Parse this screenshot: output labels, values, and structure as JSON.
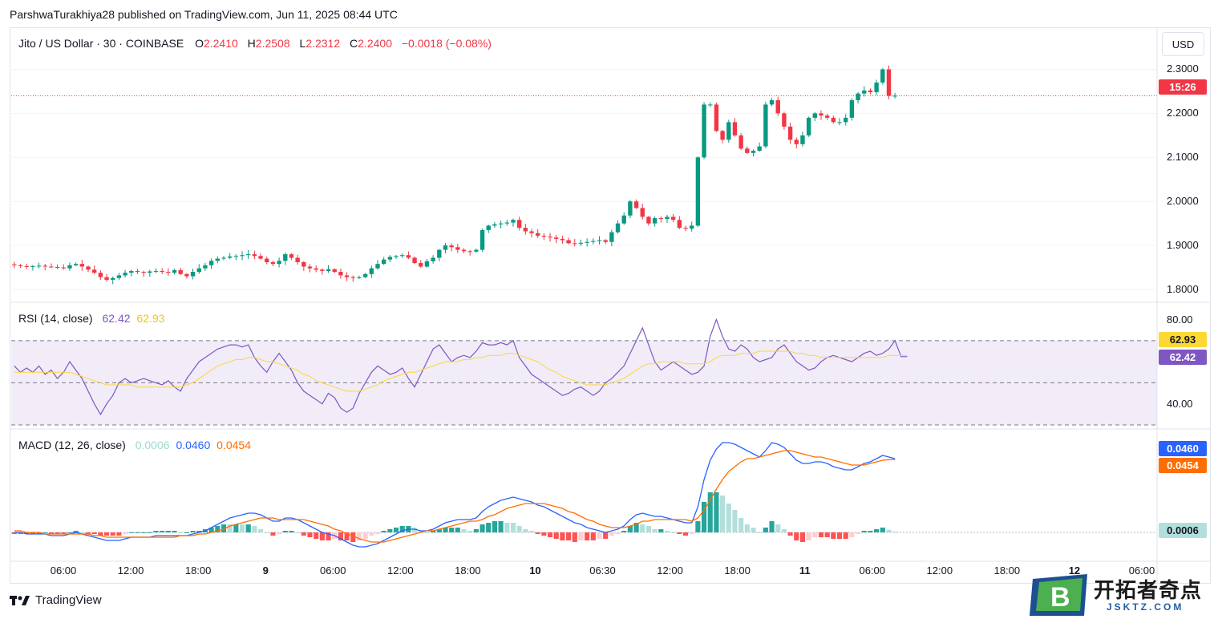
{
  "header": {
    "text": "ParshwaTurakhiya28 published on TradingView.com, Jun 11, 2025 08:44 UTC"
  },
  "legend": {
    "symbol": "Jito / US Dollar · 30 · COINBASE",
    "o_label": "O",
    "o": "2.2410",
    "h_label": "H",
    "h": "2.2508",
    "l_label": "L",
    "l": "2.2312",
    "c_label": "C",
    "c": "2.2400",
    "change": "−0.0018 (−0.08%)"
  },
  "currency": "USD",
  "price_tag": "15:26",
  "rsi": {
    "label": "RSI (14, close)",
    "v1": "62.42",
    "v2": "62.93",
    "tag_rsi": "62.42",
    "tag_ma": "62.93"
  },
  "macd": {
    "label": "MACD (12, 26, close)",
    "hist": "0.0006",
    "macd": "0.0460",
    "signal": "0.0454",
    "tag_macd": "0.0460",
    "tag_signal": "0.0454",
    "tag_hist": "0.0006"
  },
  "brand": {
    "name": "TradingView"
  },
  "watermark": {
    "name": "开拓者奇点",
    "sub": "JSKTZ.COM",
    "letter": "B"
  },
  "colors": {
    "up": "#089981",
    "down": "#f23645",
    "rsi": "#7e57c2",
    "rsi_ma": "#fdd835",
    "macd": "#2962ff",
    "signal": "#ff6d00"
  },
  "chart_data": [
    {
      "type": "candlestick",
      "title": "Jito / US Dollar · 30 · COINBASE",
      "y_ticks": [
        "2.3000",
        "2.2000",
        "2.1000",
        "2.0000",
        "1.9000",
        "1.8000"
      ],
      "ylim": [
        1.78,
        2.33
      ],
      "x_ticks": [
        "06:00",
        "12:00",
        "18:00",
        "9",
        "06:00",
        "12:00",
        "18:00",
        "10",
        "06:30",
        "12:00",
        "18:00",
        "11",
        "06:00",
        "12:00",
        "18:00",
        "12",
        "06:00"
      ],
      "close_path": [
        1.855,
        1.853,
        1.852,
        1.853,
        1.854,
        1.852,
        1.851,
        1.85,
        1.848,
        1.855,
        1.858,
        1.852,
        1.845,
        1.838,
        1.828,
        1.822,
        1.826,
        1.832,
        1.838,
        1.842,
        1.84,
        1.838,
        1.841,
        1.842,
        1.84,
        1.838,
        1.844,
        1.835,
        1.83,
        1.84,
        1.848,
        1.855,
        1.865,
        1.87,
        1.872,
        1.875,
        1.876,
        1.878,
        1.88,
        1.876,
        1.87,
        1.862,
        1.858,
        1.865,
        1.88,
        1.872,
        1.862,
        1.852,
        1.848,
        1.845,
        1.842,
        1.846,
        1.84,
        1.832,
        1.828,
        1.826,
        1.828,
        1.835,
        1.848,
        1.858,
        1.868,
        1.874,
        1.876,
        1.878,
        1.872,
        1.86,
        1.852,
        1.864,
        1.872,
        1.89,
        1.9,
        1.896,
        1.89,
        1.887,
        1.886,
        1.89,
        1.935,
        1.945,
        1.948,
        1.95,
        1.952,
        1.958,
        1.94,
        1.932,
        1.928,
        1.922,
        1.92,
        1.918,
        1.915,
        1.912,
        1.905,
        1.904,
        1.906,
        1.908,
        1.91,
        1.912,
        1.908,
        1.93,
        1.95,
        1.968,
        2.0,
        1.985,
        1.965,
        1.95,
        1.962,
        1.96,
        1.965,
        1.958,
        1.94,
        1.938,
        1.945,
        2.1,
        2.22,
        2.22,
        2.16,
        2.14,
        2.18,
        2.15,
        2.12,
        2.11,
        2.115,
        2.125,
        2.22,
        2.23,
        2.2,
        2.17,
        2.14,
        2.13,
        2.15,
        2.19,
        2.2,
        2.195,
        2.19,
        2.18,
        2.18,
        2.19,
        2.23,
        2.245,
        2.252,
        2.248,
        2.27,
        2.3,
        2.24,
        2.24
      ]
    },
    {
      "type": "line",
      "title": "RSI (14, close)",
      "y_ticks": [
        "80.00",
        "40.00"
      ],
      "bands": [
        30,
        50,
        70
      ],
      "ylim": [
        30,
        84
      ],
      "series": [
        {
          "name": "RSI",
          "values": [
            58,
            55,
            57,
            55,
            58,
            54,
            56,
            52,
            55,
            60,
            56,
            52,
            46,
            40,
            35,
            40,
            44,
            50,
            52,
            50,
            51,
            52,
            51,
            50,
            49,
            51,
            48,
            46,
            52,
            56,
            60,
            62,
            64,
            66,
            67,
            68,
            68,
            67,
            68,
            62,
            58,
            55,
            60,
            64,
            60,
            56,
            50,
            46,
            44,
            42,
            40,
            45,
            43,
            38,
            36,
            38,
            45,
            50,
            55,
            58,
            56,
            54,
            55,
            57,
            52,
            48,
            54,
            60,
            66,
            68,
            64,
            60,
            62,
            63,
            62,
            65,
            69,
            68,
            68,
            69,
            68,
            70,
            62,
            58,
            54,
            52,
            50,
            48,
            46,
            44,
            45,
            47,
            48,
            46,
            44,
            46,
            50,
            52,
            55,
            58,
            64,
            70,
            76,
            68,
            60,
            56,
            58,
            60,
            58,
            56,
            54,
            55,
            58,
            72,
            80,
            72,
            66,
            65,
            68,
            66,
            62,
            60,
            61,
            62,
            66,
            68,
            64,
            60,
            58,
            56,
            57,
            60,
            62,
            63,
            62,
            61,
            60,
            62,
            64,
            65,
            63,
            64,
            66,
            70,
            62.4,
            62.4
          ]
        },
        {
          "name": "RSI MA",
          "values": [
            55,
            55,
            55,
            55,
            55,
            55,
            55,
            55,
            55,
            55,
            54,
            53,
            52,
            51,
            50,
            49,
            49,
            49,
            49,
            49,
            48,
            48,
            48,
            48,
            48,
            48,
            48,
            48,
            49,
            50,
            52,
            54,
            56,
            58,
            59,
            60,
            61,
            61,
            62,
            62,
            61,
            60,
            60,
            59,
            58,
            57,
            56,
            54,
            53,
            51,
            50,
            49,
            48,
            47,
            46,
            46,
            46,
            47,
            48,
            49,
            51,
            52,
            53,
            54,
            55,
            55,
            56,
            57,
            58,
            59,
            60,
            60,
            60,
            61,
            61,
            62,
            62,
            63,
            63,
            63,
            64,
            64,
            63,
            62,
            61,
            60,
            58,
            56,
            55,
            53,
            52,
            51,
            50,
            49,
            49,
            49,
            49,
            50,
            51,
            52,
            54,
            56,
            58,
            59,
            59,
            60,
            60,
            60,
            60,
            59,
            59,
            59,
            59,
            60,
            62,
            63,
            63,
            63,
            64,
            64,
            64,
            65,
            65,
            65,
            65,
            65,
            65,
            64,
            64,
            63,
            63,
            62,
            62,
            62,
            62,
            62,
            62,
            62,
            62,
            62,
            62,
            62,
            63,
            63,
            62.9,
            62.9
          ]
        }
      ]
    },
    {
      "type": "bar+line",
      "title": "MACD (12, 26, close)",
      "ylim": [
        -0.018,
        0.062
      ],
      "series": [
        {
          "name": "MACD",
          "values": [
            0.0,
            0.0,
            -0.001,
            -0.001,
            -0.001,
            -0.001,
            -0.002,
            -0.002,
            -0.002,
            -0.001,
            0.0,
            -0.001,
            -0.002,
            -0.003,
            -0.004,
            -0.005,
            -0.005,
            -0.005,
            -0.004,
            -0.003,
            -0.003,
            -0.003,
            -0.003,
            -0.002,
            -0.002,
            -0.002,
            -0.002,
            -0.002,
            -0.002,
            -0.001,
            0.0,
            0.001,
            0.003,
            0.005,
            0.007,
            0.009,
            0.01,
            0.011,
            0.012,
            0.012,
            0.011,
            0.009,
            0.007,
            0.007,
            0.009,
            0.009,
            0.008,
            0.006,
            0.004,
            0.002,
            0.0,
            -0.001,
            -0.002,
            -0.004,
            -0.006,
            -0.008,
            -0.009,
            -0.009,
            -0.008,
            -0.007,
            -0.005,
            -0.003,
            -0.001,
            0.001,
            0.002,
            0.002,
            0.001,
            0.001,
            0.002,
            0.004,
            0.006,
            0.007,
            0.008,
            0.008,
            0.008,
            0.009,
            0.013,
            0.016,
            0.018,
            0.02,
            0.021,
            0.022,
            0.021,
            0.02,
            0.019,
            0.017,
            0.016,
            0.014,
            0.012,
            0.01,
            0.008,
            0.006,
            0.005,
            0.003,
            0.002,
            0.001,
            0.0,
            0.001,
            0.002,
            0.004,
            0.008,
            0.011,
            0.012,
            0.011,
            0.01,
            0.01,
            0.009,
            0.008,
            0.007,
            0.006,
            0.006,
            0.016,
            0.033,
            0.045,
            0.052,
            0.056,
            0.056,
            0.055,
            0.053,
            0.051,
            0.049,
            0.047,
            0.051,
            0.056,
            0.055,
            0.053,
            0.049,
            0.045,
            0.043,
            0.043,
            0.044,
            0.044,
            0.043,
            0.041,
            0.04,
            0.039,
            0.039,
            0.041,
            0.043,
            0.044,
            0.046,
            0.048,
            0.047,
            0.046
          ]
        },
        {
          "name": "Signal",
          "values": [
            0.001,
            0.001,
            0.0,
            0.0,
            0.0,
            -0.001,
            -0.001,
            -0.001,
            -0.001,
            -0.001,
            -0.001,
            -0.001,
            -0.001,
            -0.002,
            -0.002,
            -0.003,
            -0.003,
            -0.003,
            -0.003,
            -0.003,
            -0.003,
            -0.003,
            -0.003,
            -0.003,
            -0.003,
            -0.003,
            -0.003,
            -0.002,
            -0.002,
            -0.002,
            -0.001,
            -0.001,
            0.0,
            0.001,
            0.002,
            0.004,
            0.005,
            0.006,
            0.007,
            0.008,
            0.009,
            0.009,
            0.009,
            0.008,
            0.008,
            0.008,
            0.008,
            0.008,
            0.007,
            0.006,
            0.005,
            0.004,
            0.002,
            0.001,
            -0.001,
            -0.002,
            -0.004,
            -0.005,
            -0.006,
            -0.006,
            -0.006,
            -0.005,
            -0.004,
            -0.003,
            -0.002,
            -0.001,
            0.0,
            0.001,
            0.001,
            0.002,
            0.003,
            0.004,
            0.005,
            0.006,
            0.007,
            0.007,
            0.008,
            0.01,
            0.011,
            0.013,
            0.015,
            0.016,
            0.017,
            0.018,
            0.018,
            0.018,
            0.018,
            0.017,
            0.016,
            0.015,
            0.013,
            0.012,
            0.01,
            0.008,
            0.007,
            0.005,
            0.004,
            0.003,
            0.003,
            0.003,
            0.004,
            0.005,
            0.007,
            0.007,
            0.008,
            0.008,
            0.008,
            0.008,
            0.008,
            0.008,
            0.007,
            0.009,
            0.014,
            0.02,
            0.027,
            0.033,
            0.038,
            0.041,
            0.044,
            0.046,
            0.046,
            0.047,
            0.048,
            0.049,
            0.05,
            0.051,
            0.051,
            0.05,
            0.049,
            0.048,
            0.047,
            0.047,
            0.046,
            0.045,
            0.044,
            0.043,
            0.042,
            0.042,
            0.042,
            0.043,
            0.044,
            0.045,
            0.0454,
            0.0454
          ]
        }
      ]
    }
  ]
}
